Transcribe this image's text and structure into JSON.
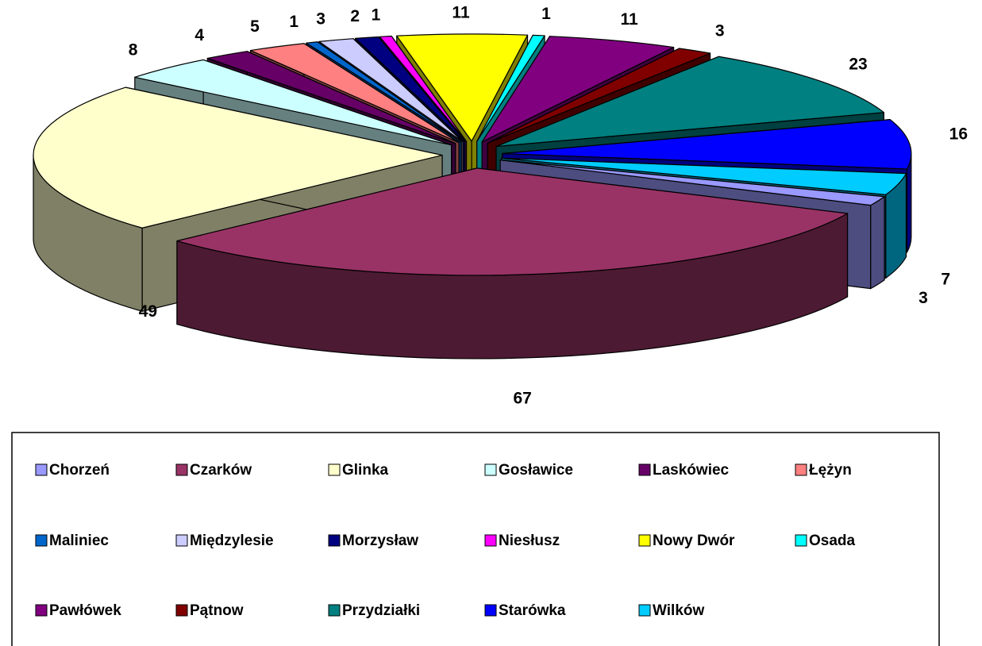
{
  "chart_data": {
    "type": "pie3d",
    "categories": [
      "Chorzeń",
      "Czarków",
      "Glinka",
      "Gosławice",
      "Laskówiec",
      "Łężyn",
      "Maliniec",
      "Międzylesie",
      "Morzysław",
      "Niesłusz",
      "Nowy Dwór",
      "Osada",
      "Pawłówek",
      "Pątnow",
      "Przydziałki",
      "Starówka",
      "Wilków"
    ],
    "values": [
      3,
      67,
      49,
      8,
      4,
      5,
      1,
      3,
      2,
      1,
      11,
      1,
      11,
      3,
      23,
      16,
      7
    ],
    "colors": [
      "#9999ff",
      "#993366",
      "#ffffcc",
      "#ccffff",
      "#660066",
      "#ff8080",
      "#0066cc",
      "#ccccff",
      "#000080",
      "#ff00ff",
      "#ffff00",
      "#00ffff",
      "#800080",
      "#800000",
      "#008080",
      "#0000ff",
      "#00ccff"
    ],
    "legend": "bottom"
  }
}
